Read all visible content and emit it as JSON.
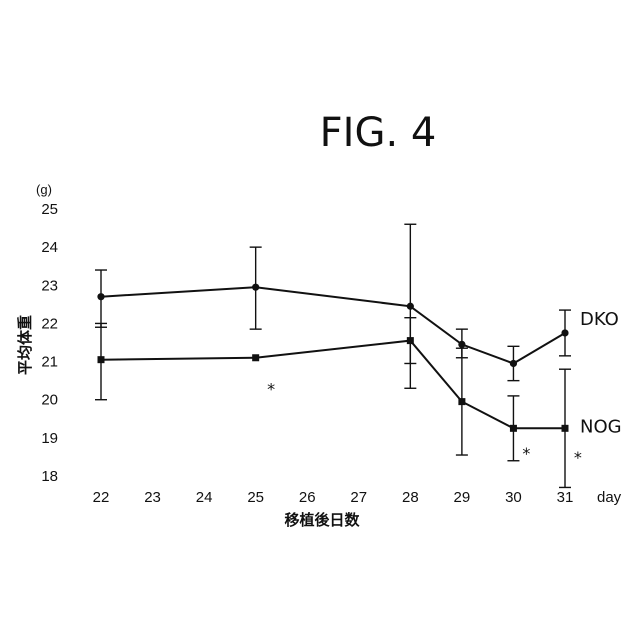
{
  "figure_label": "FIG. 4",
  "chart_data": {
    "type": "line",
    "title": "",
    "ylabel": "平均体重",
    "yunit": "(g)",
    "xlabel": "移植後日数",
    "xunit": "day",
    "x": [
      22,
      23,
      24,
      25,
      26,
      27,
      28,
      29,
      30,
      31
    ],
    "xlim": [
      22,
      31
    ],
    "ylim": [
      18,
      25
    ],
    "yticks": [
      18,
      19,
      20,
      21,
      22,
      23,
      24,
      25
    ],
    "grid": false,
    "series": [
      {
        "name": "DKO",
        "marker": "circle",
        "points": [
          {
            "x": 22,
            "y": 22.7,
            "err_low": 21.9,
            "err_high": 23.4
          },
          {
            "x": 25,
            "y": 22.95,
            "err_low": 21.85,
            "err_high": 24.0
          },
          {
            "x": 28,
            "y": 22.45,
            "err_low": 20.3,
            "err_high": 24.6
          },
          {
            "x": 29,
            "y": 21.45,
            "err_low": 21.1,
            "err_high": 21.85
          },
          {
            "x": 30,
            "y": 20.95,
            "err_low": 20.5,
            "err_high": 21.4
          },
          {
            "x": 31,
            "y": 21.75,
            "err_low": 21.15,
            "err_high": 22.35
          }
        ]
      },
      {
        "name": "NOG",
        "marker": "square",
        "points": [
          {
            "x": 22,
            "y": 21.05,
            "err_low": 20.0,
            "err_high": 22.0
          },
          {
            "x": 25,
            "y": 21.1
          },
          {
            "x": 28,
            "y": 21.55,
            "err_low": 20.95,
            "err_high": 22.15
          },
          {
            "x": 29,
            "y": 19.95,
            "err_low": 18.55,
            "err_high": 21.35
          },
          {
            "x": 30,
            "y": 19.25,
            "err_low": 18.4,
            "err_high": 20.1
          },
          {
            "x": 31,
            "y": 19.25,
            "err_low": 17.7,
            "err_high": 20.8
          }
        ]
      }
    ],
    "annotations": [
      {
        "text": "*",
        "x": 25.3,
        "y": 20.3
      },
      {
        "text": "*",
        "x": 30.25,
        "y": 18.6
      },
      {
        "text": "*",
        "x": 31.25,
        "y": 18.5
      }
    ]
  }
}
